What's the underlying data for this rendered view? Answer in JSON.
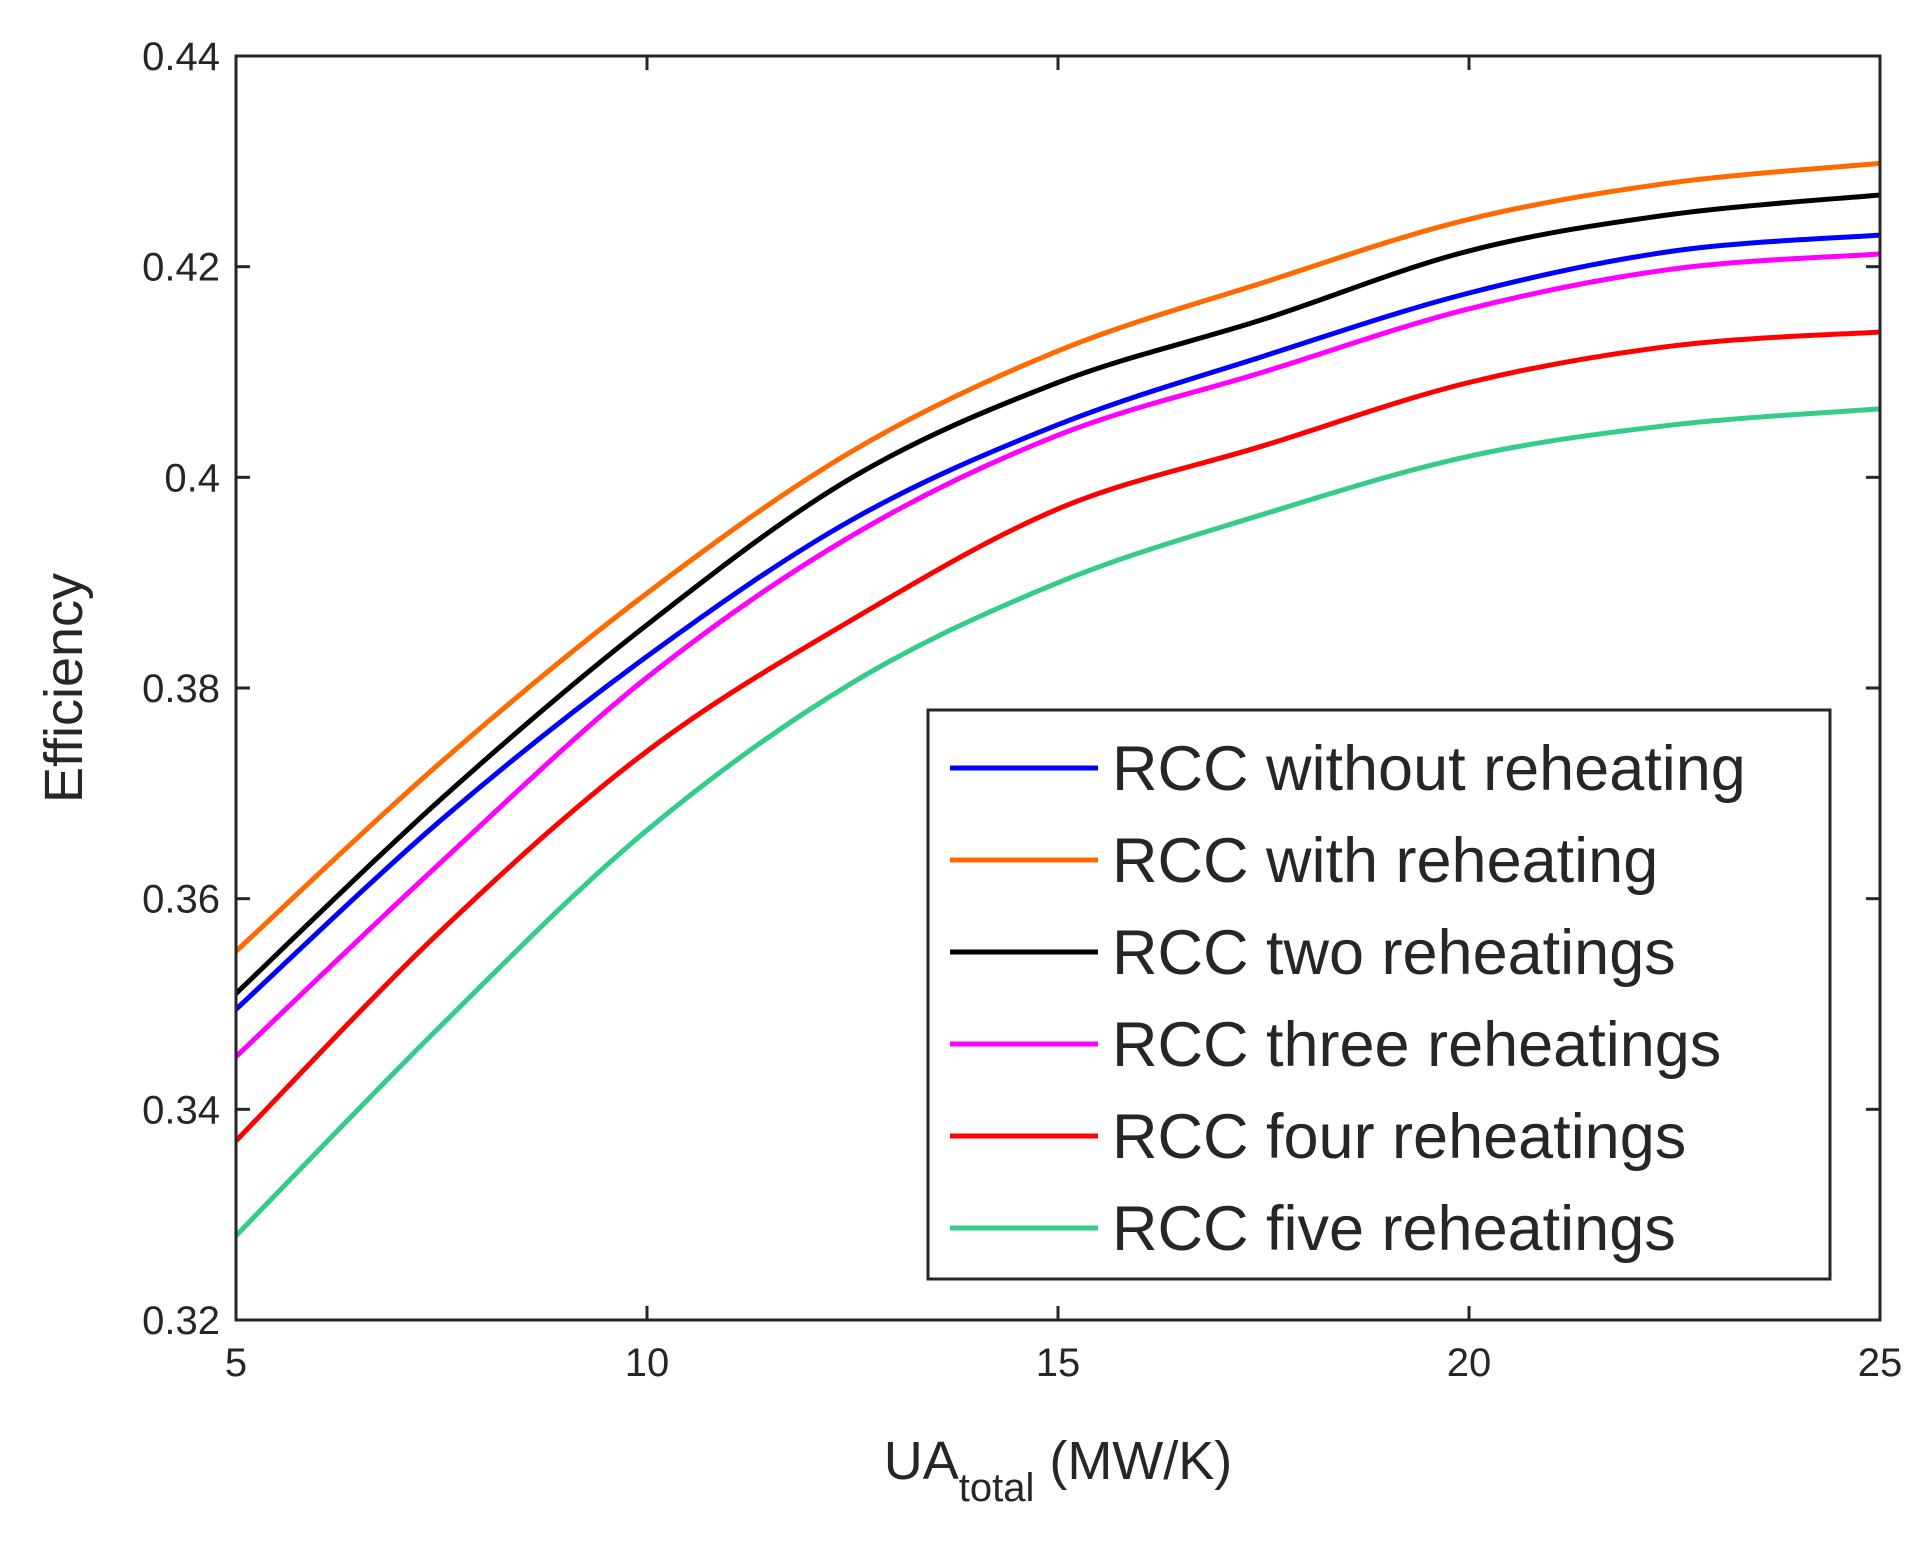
{
  "chart_data": {
    "type": "line",
    "title": "",
    "xlabel": "UA",
    "xlabel_subscript": "total",
    "xlabel_units": " (MW/K)",
    "ylabel": "Efficiency",
    "xlim": [
      5,
      25
    ],
    "ylim": [
      0.32,
      0.44
    ],
    "xticks": [
      5,
      10,
      15,
      20,
      25
    ],
    "xtick_labels": [
      "5",
      "10",
      "15",
      "20",
      "25"
    ],
    "yticks": [
      0.32,
      0.34,
      0.36,
      0.38,
      0.4,
      0.42,
      0.44
    ],
    "ytick_labels": [
      "0.32",
      "0.34",
      "0.36",
      "0.38",
      "0.4",
      "0.42",
      "0.44"
    ],
    "grid": false,
    "legend_position": "bottom-right",
    "x": [
      5,
      7.5,
      10,
      12.5,
      15,
      17.5,
      20,
      22.5,
      25
    ],
    "series": [
      {
        "name": "RCC without reheating",
        "color": "#0000ff",
        "values": [
          0.3495,
          0.3675,
          0.383,
          0.396,
          0.405,
          0.4115,
          0.4175,
          0.4215,
          0.423
        ]
      },
      {
        "name": "RCC with reheating",
        "color": "#ff6a00",
        "values": [
          0.355,
          0.373,
          0.389,
          0.4025,
          0.412,
          0.4185,
          0.4245,
          0.428,
          0.4298
        ]
      },
      {
        "name": "RCC two reheatings",
        "color": "#000000",
        "values": [
          0.351,
          0.3695,
          0.386,
          0.4,
          0.409,
          0.415,
          0.4215,
          0.425,
          0.4268
        ]
      },
      {
        "name": "RCC three reheatings",
        "color": "#ff00ff",
        "values": [
          0.345,
          0.3635,
          0.381,
          0.3945,
          0.404,
          0.41,
          0.416,
          0.4198,
          0.4212
        ]
      },
      {
        "name": "RCC four reheatings",
        "color": "#ff0000",
        "values": [
          0.337,
          0.357,
          0.374,
          0.3865,
          0.397,
          0.403,
          0.409,
          0.4125,
          0.4138
        ]
      },
      {
        "name": "RCC five reheatings",
        "color": "#33cc88",
        "values": [
          0.328,
          0.348,
          0.3665,
          0.3805,
          0.39,
          0.3965,
          0.402,
          0.405,
          0.4065
        ]
      }
    ]
  }
}
